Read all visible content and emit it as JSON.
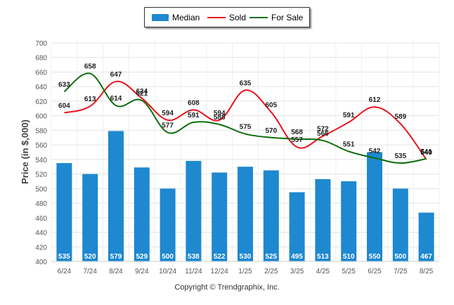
{
  "chart_data": {
    "type": "bar",
    "categories": [
      "6/24",
      "7/24",
      "8/24",
      "9/24",
      "10/24",
      "11/24",
      "12/24",
      "1/25",
      "2/25",
      "3/25",
      "4/25",
      "5/25",
      "6/25",
      "7/25",
      "8/25"
    ],
    "series": [
      {
        "name": "Median",
        "type": "bar",
        "color": "#1e88d0",
        "values": [
          535,
          520,
          579,
          529,
          500,
          538,
          522,
          530,
          525,
          495,
          513,
          510,
          550,
          500,
          467
        ]
      },
      {
        "name": "Sold",
        "type": "line",
        "color": "#e8131b",
        "values": [
          604,
          613,
          647,
          624,
          594,
          608,
          594,
          635,
          605,
          557,
          572,
          591,
          612,
          589,
          540
        ]
      },
      {
        "name": "For Sale",
        "type": "line",
        "color": "#0b6e0b",
        "values": [
          633,
          658,
          614,
          621,
          577,
          591,
          588,
          575,
          570,
          568,
          566,
          551,
          542,
          535,
          541
        ]
      }
    ],
    "ylabel": "Price (in $,000)",
    "xlabel": "",
    "ylim": [
      400,
      700
    ],
    "yticks": [
      400,
      420,
      440,
      460,
      480,
      500,
      520,
      540,
      560,
      580,
      600,
      620,
      640,
      660,
      680,
      700
    ],
    "grid": true,
    "legend_position": "top-center"
  },
  "footer": {
    "copyright": "Copyright © Trendgraphix, Inc."
  }
}
